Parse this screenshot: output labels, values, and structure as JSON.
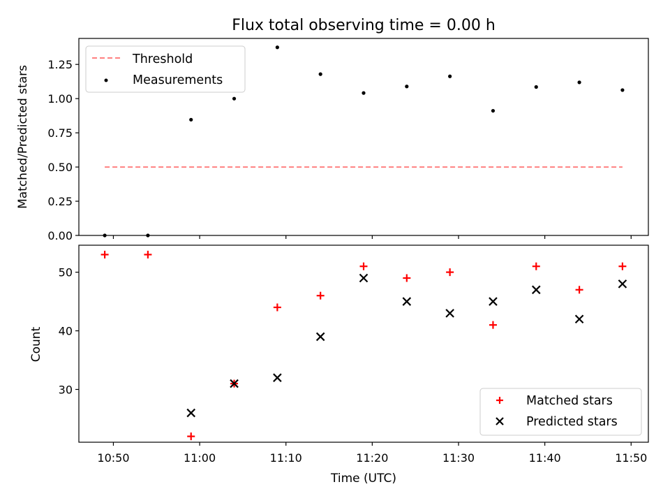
{
  "figure": {
    "title": "Flux total observing time = 0.00 h"
  },
  "chart_data": [
    {
      "type": "scatter",
      "ylabel": "Matched/Predicted stars",
      "xlabel": "",
      "xlim": [
        "10:46",
        "11:52"
      ],
      "ylim": [
        0,
        1.44
      ],
      "y_ticks": [
        "0.00",
        "0.25",
        "0.50",
        "0.75",
        "1.00",
        "1.25"
      ],
      "grid": false,
      "legend_position": "top-left",
      "threshold": {
        "name": "Threshold",
        "y": 0.5,
        "x_range": [
          "10:49",
          "11:49"
        ],
        "color": "#ff8080",
        "style": "dashed"
      },
      "series": [
        {
          "name": "Measurements",
          "color": "#000000",
          "marker": "dot",
          "x": [
            "10:49",
            "10:54",
            "10:59",
            "11:04",
            "11:09",
            "11:14",
            "11:19",
            "11:24",
            "11:29",
            "11:34",
            "11:39",
            "11:44",
            "11:49"
          ],
          "y": [
            0.0,
            0.0,
            0.846,
            1.0,
            1.375,
            1.179,
            1.041,
            1.089,
            1.163,
            0.911,
            1.085,
            1.119,
            1.0625
          ]
        }
      ]
    },
    {
      "type": "scatter",
      "ylabel": "Count",
      "xlabel": "Time (UTC)",
      "xlim": [
        "10:46",
        "11:52"
      ],
      "ylim": [
        21,
        54.6
      ],
      "y_ticks": [
        "30",
        "40",
        "50"
      ],
      "x_ticks": [
        "10:50",
        "11:00",
        "11:10",
        "11:20",
        "11:30",
        "11:40",
        "11:50"
      ],
      "grid": false,
      "legend_position": "bottom-right",
      "series": [
        {
          "name": "Matched stars",
          "color": "#ff0000",
          "marker": "plus",
          "x": [
            "10:49",
            "10:54",
            "10:59",
            "11:04",
            "11:09",
            "11:14",
            "11:19",
            "11:24",
            "11:29",
            "11:34",
            "11:39",
            "11:44",
            "11:49"
          ],
          "y": [
            53,
            53,
            22,
            31,
            44,
            46,
            51,
            49,
            50,
            41,
            51,
            47,
            51
          ]
        },
        {
          "name": "Predicted stars",
          "color": "#000000",
          "marker": "x",
          "x": [
            "10:59",
            "11:04",
            "11:09",
            "11:14",
            "11:19",
            "11:24",
            "11:29",
            "11:34",
            "11:39",
            "11:44",
            "11:49"
          ],
          "y": [
            26,
            31,
            32,
            39,
            49,
            45,
            43,
            45,
            47,
            42,
            48
          ]
        }
      ]
    }
  ]
}
